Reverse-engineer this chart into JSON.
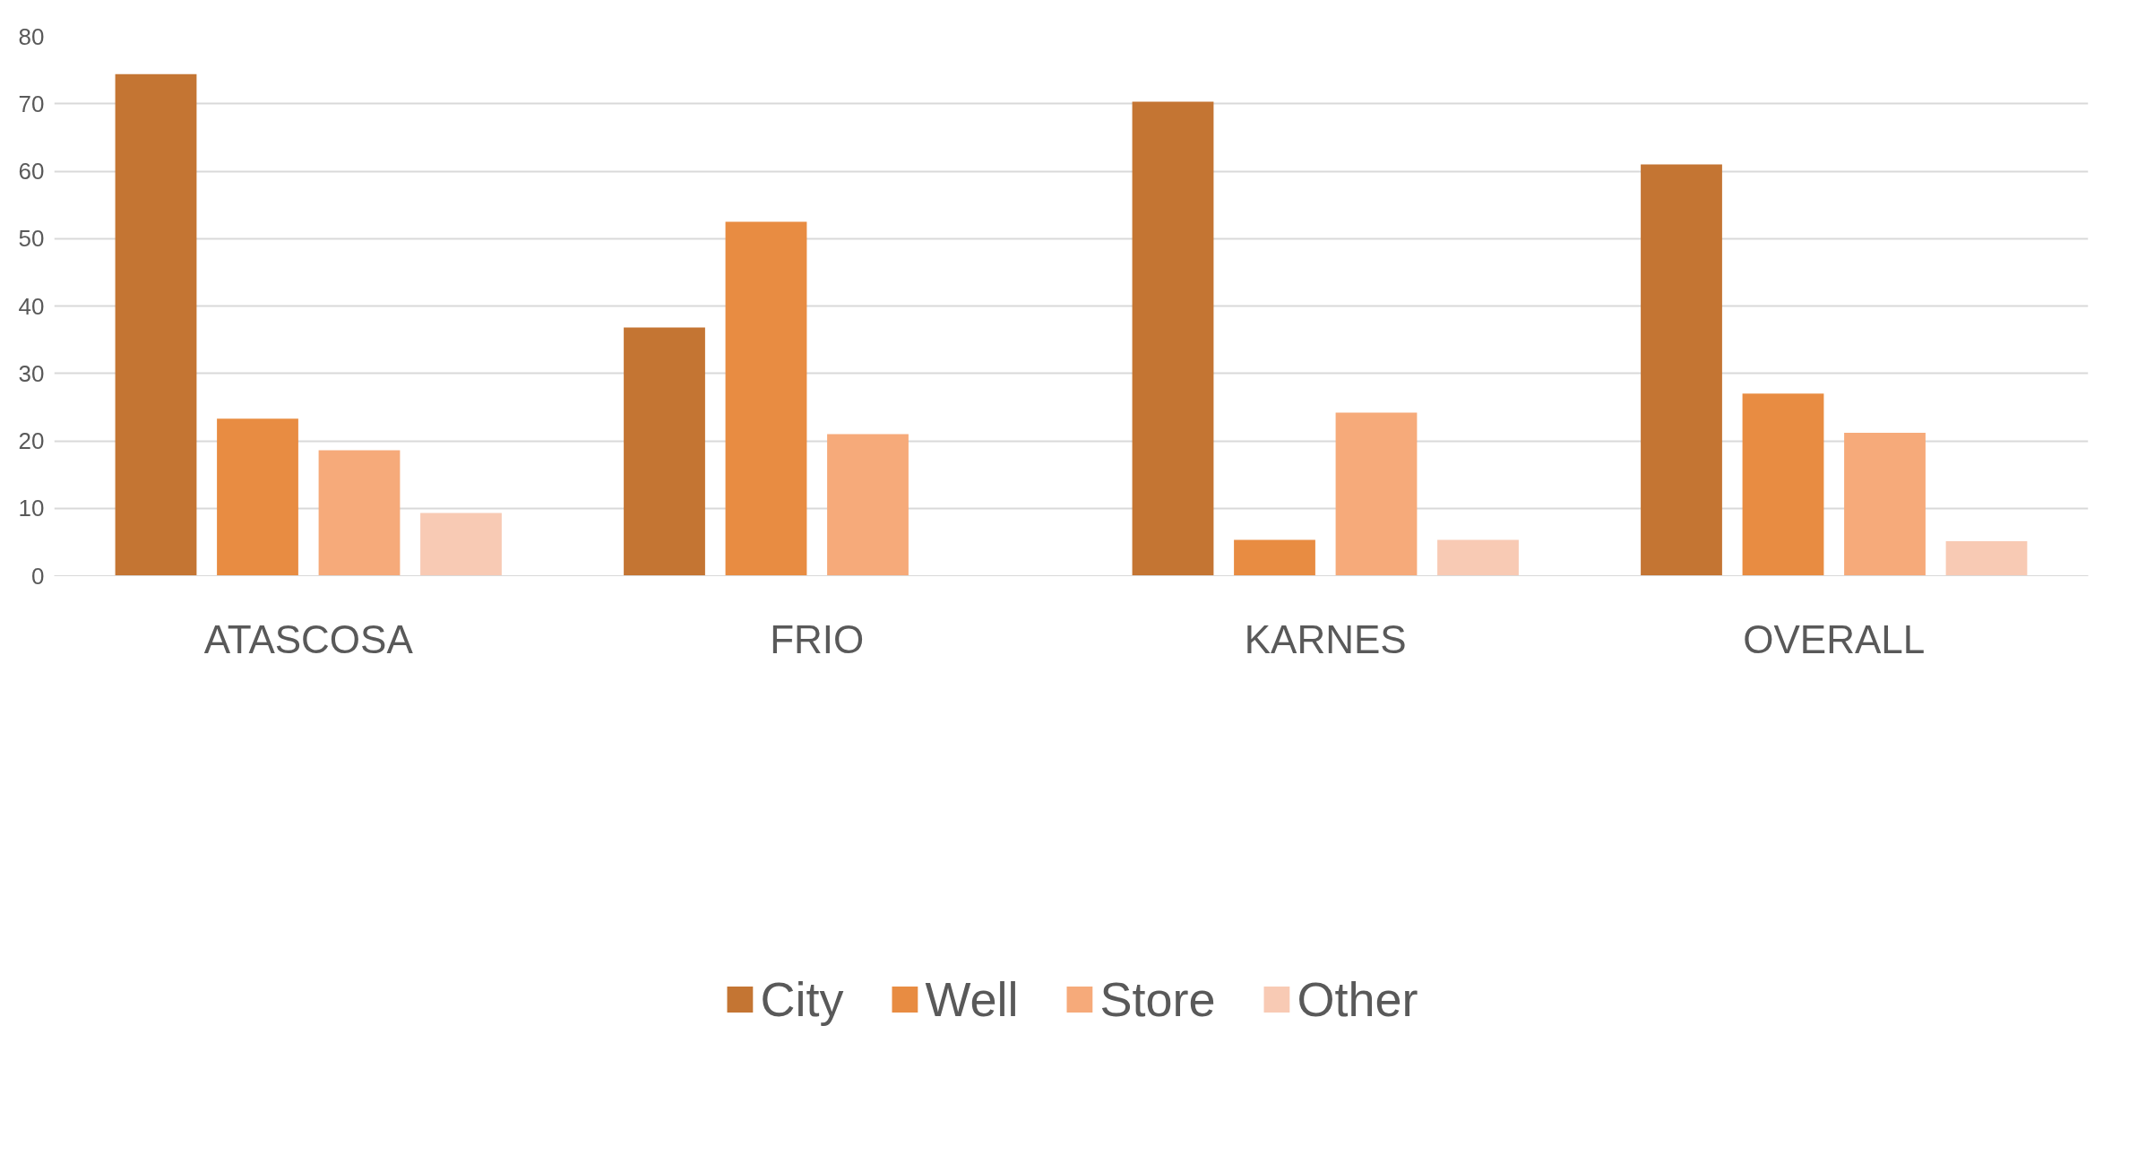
{
  "chart_data": {
    "type": "bar",
    "categories": [
      "ATASCOSA",
      "FRIO",
      "KARNES",
      "OVERALL"
    ],
    "series": [
      {
        "name": "City",
        "color": "#c47533",
        "values": [
          74.4,
          36.8,
          70.3,
          61.0
        ]
      },
      {
        "name": "Well",
        "color": "#e88c42",
        "values": [
          23.3,
          52.5,
          5.3,
          27.0
        ]
      },
      {
        "name": "Store",
        "color": "#f6aa7a",
        "values": [
          18.6,
          21.0,
          24.2,
          21.2
        ]
      },
      {
        "name": "Other",
        "color": "#f8cab4",
        "values": [
          9.3,
          null,
          5.3,
          5.1
        ]
      }
    ],
    "ylim": [
      0,
      80
    ],
    "yticks": [
      0,
      10,
      20,
      30,
      40,
      50,
      60,
      70,
      80
    ],
    "grid": "y",
    "legend": "bottom"
  }
}
